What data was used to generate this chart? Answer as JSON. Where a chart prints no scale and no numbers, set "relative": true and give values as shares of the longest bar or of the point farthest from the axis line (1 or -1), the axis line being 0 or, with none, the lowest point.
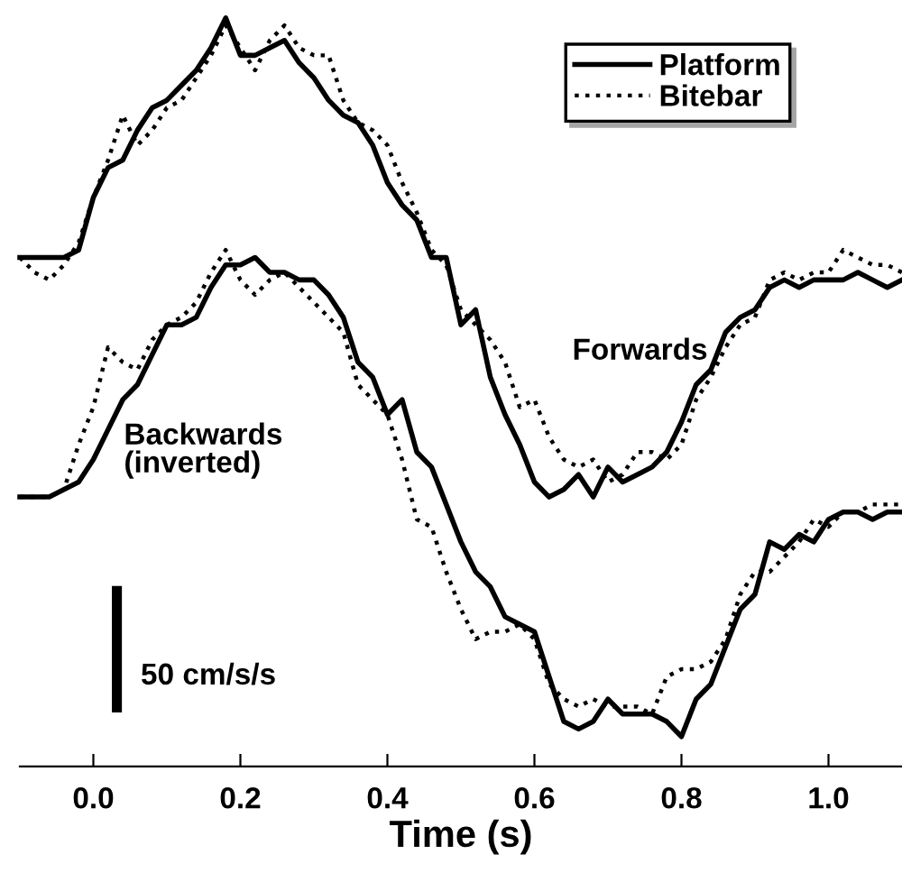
{
  "chart_data": {
    "type": "line",
    "relative": true,
    "xlabel": "Time (s)",
    "xlim": [
      -0.1,
      1.1
    ],
    "xticks": [
      {
        "value": 0,
        "label": "0.0"
      },
      {
        "value": 0.2,
        "label": "0.2"
      },
      {
        "value": 0.4,
        "label": "0.4"
      },
      {
        "value": 0.6,
        "label": "0.6"
      },
      {
        "value": 0.8,
        "label": "0.8"
      },
      {
        "value": 1.0,
        "label": "1.0"
      }
    ],
    "x": [
      -0.1,
      -0.08,
      -0.06,
      -0.04,
      -0.02,
      0,
      0.02,
      0.04,
      0.06,
      0.08,
      0.1,
      0.12,
      0.14,
      0.16,
      0.18,
      0.2,
      0.22,
      0.24,
      0.26,
      0.28,
      0.3,
      0.32,
      0.34,
      0.36,
      0.38,
      0.4,
      0.42,
      0.44,
      0.46,
      0.48,
      0.5,
      0.52,
      0.54,
      0.56,
      0.58,
      0.6,
      0.62,
      0.64,
      0.66,
      0.68,
      0.7,
      0.72,
      0.74,
      0.76,
      0.78,
      0.8,
      0.82,
      0.84,
      0.86,
      0.88,
      0.9,
      0.92,
      0.94,
      0.96,
      0.98,
      1.0,
      1.02,
      1.04,
      1.06,
      1.08,
      1.1
    ],
    "series": [
      {
        "name": "Platform",
        "color": "#000000",
        "line_style": "solid",
        "values": [
          0.68,
          0.68,
          0.68,
          0.68,
          0.69,
          0.76,
          0.8,
          0.81,
          0.85,
          0.88,
          0.89,
          0.91,
          0.93,
          0.96,
          1,
          0.95,
          0.95,
          0.96,
          0.97,
          0.94,
          0.92,
          0.89,
          0.87,
          0.86,
          0.83,
          0.78,
          0.75,
          0.73,
          0.68,
          0.68,
          0.59,
          0.61,
          0.52,
          0.47,
          0.43,
          0.38,
          0.36,
          0.37,
          0.39,
          0.36,
          0.4,
          0.38,
          0.39,
          0.4,
          0.42,
          0.46,
          0.51,
          0.53,
          0.58,
          0.6,
          0.61,
          0.64,
          0.65,
          0.64,
          0.65,
          0.65,
          0.65,
          0.66,
          0.65,
          0.64,
          0.65
        ]
      },
      {
        "name": "Bitebar",
        "color": "#000000",
        "line_style": "dotted",
        "values": [
          0.68,
          0.66,
          0.65,
          0.67,
          0.7,
          0.76,
          0.81,
          0.87,
          0.83,
          0.85,
          0.88,
          0.89,
          0.92,
          0.95,
          0.99,
          0.96,
          0.93,
          0.97,
          0.99,
          0.96,
          0.95,
          0.95,
          0.89,
          0.86,
          0.85,
          0.83,
          0.78,
          0.74,
          0.69,
          0.67,
          0.61,
          0.59,
          0.57,
          0.54,
          0.48,
          0.49,
          0.44,
          0.41,
          0.4,
          0.41,
          0.38,
          0.39,
          0.42,
          0.42,
          0.41,
          0.43,
          0.49,
          0.52,
          0.56,
          0.59,
          0.6,
          0.65,
          0.66,
          0.65,
          0.66,
          0.66,
          0.69,
          0.68,
          0.67,
          0.67,
          0.66
        ]
      },
      {
        "color": "#000000",
        "line_style": "solid",
        "values": [
          0.36,
          0.36,
          0.36,
          0.37,
          0.38,
          0.41,
          0.45,
          0.49,
          0.51,
          0.55,
          0.59,
          0.59,
          0.6,
          0.64,
          0.67,
          0.67,
          0.68,
          0.66,
          0.66,
          0.65,
          0.65,
          0.63,
          0.6,
          0.54,
          0.52,
          0.47,
          0.49,
          0.42,
          0.4,
          0.35,
          0.3,
          0.26,
          0.24,
          0.2,
          0.19,
          0.18,
          0.12,
          0.06,
          0.05,
          0.06,
          0.09,
          0.07,
          0.07,
          0.07,
          0.06,
          0.04,
          0.09,
          0.11,
          0.16,
          0.21,
          0.23,
          0.3,
          0.29,
          0.31,
          0.3,
          0.33,
          0.34,
          0.34,
          0.33,
          0.34,
          0.34
        ]
      },
      {
        "color": "#000000",
        "line_style": "dotted",
        "values": [
          0.36,
          0.36,
          0.36,
          0.37,
          0.43,
          0.48,
          0.56,
          0.54,
          0.53,
          0.57,
          0.59,
          0.6,
          0.62,
          0.66,
          0.69,
          0.65,
          0.63,
          0.65,
          0.66,
          0.64,
          0.62,
          0.6,
          0.58,
          0.51,
          0.49,
          0.47,
          0.41,
          0.33,
          0.32,
          0.26,
          0.21,
          0.17,
          0.18,
          0.18,
          0.19,
          0.17,
          0.11,
          0.09,
          0.08,
          0.09,
          0.08,
          0.08,
          0.08,
          0.07,
          0.12,
          0.13,
          0.13,
          0.14,
          0.17,
          0.23,
          0.26,
          0.26,
          0.28,
          0.3,
          0.33,
          0.32,
          0.34,
          0.34,
          0.35,
          0.35,
          0.35
        ]
      }
    ],
    "annotations": [
      "Forwards",
      "Backwards\n(inverted)",
      "50 cm/s/s"
    ],
    "legend": "top right",
    "marker": "none"
  }
}
